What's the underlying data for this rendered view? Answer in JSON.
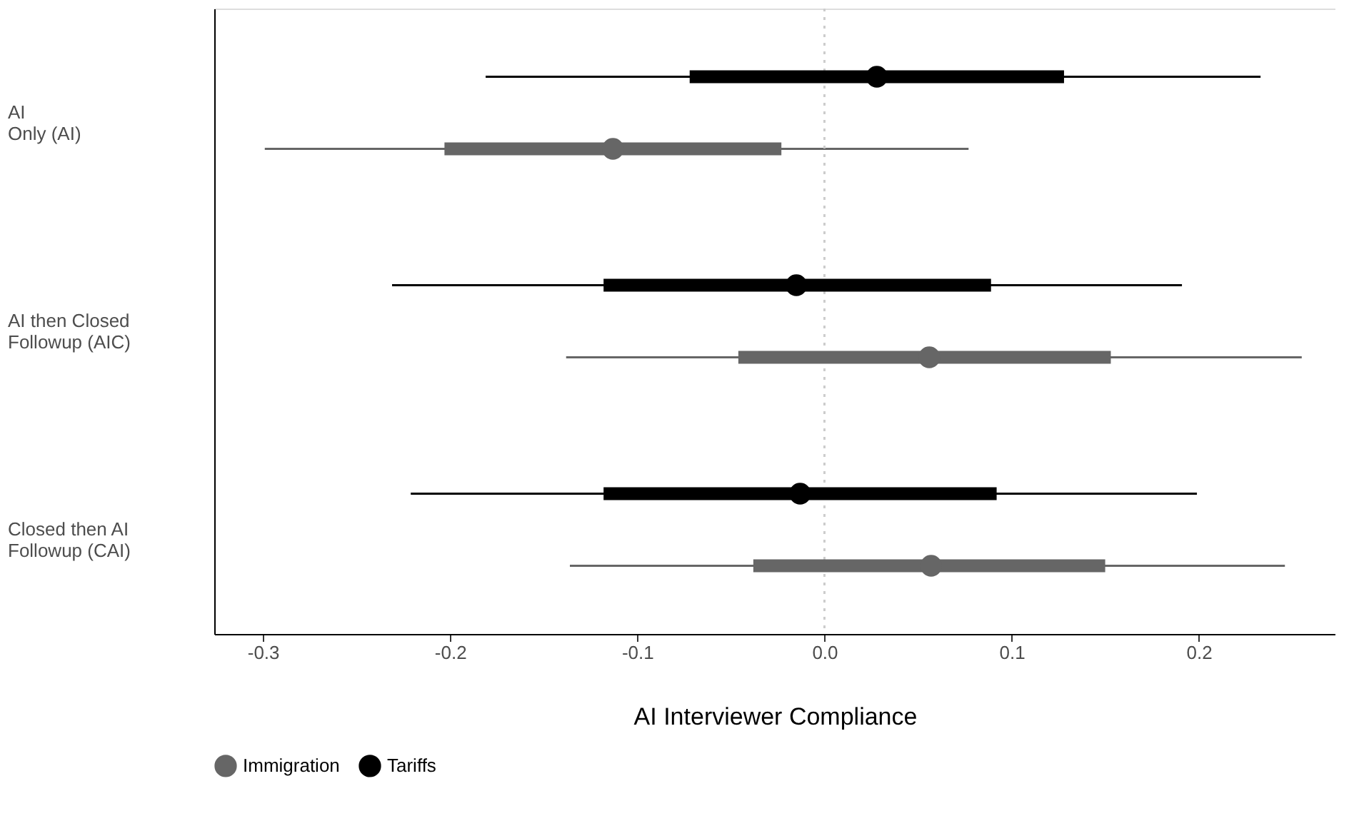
{
  "chart_data": {
    "type": "box",
    "orientation": "horizontal",
    "xlabel": "AI Interviewer Compliance",
    "categories": [
      "AI Only (AI)",
      "AI then Closed Followup (AIC)",
      "Closed then AI Followup (CAI)"
    ],
    "series": [
      {
        "name": "Immigration",
        "color": "#666666",
        "boxes": [
          {
            "low": -0.299,
            "q1": -0.203,
            "median": -0.113,
            "q3": -0.023,
            "high": 0.077
          },
          {
            "low": -0.138,
            "q1": -0.046,
            "median": 0.056,
            "q3": 0.153,
            "high": 0.255
          },
          {
            "low": -0.136,
            "q1": -0.038,
            "median": 0.057,
            "q3": 0.15,
            "high": 0.246
          }
        ]
      },
      {
        "name": "Tariffs",
        "color": "#000000",
        "boxes": [
          {
            "low": -0.181,
            "q1": -0.072,
            "median": 0.028,
            "q3": 0.128,
            "high": 0.233
          },
          {
            "low": -0.231,
            "q1": -0.118,
            "median": -0.015,
            "q3": 0.089,
            "high": 0.191
          },
          {
            "low": -0.221,
            "q1": -0.118,
            "median": -0.013,
            "q3": 0.092,
            "high": 0.199
          }
        ]
      }
    ],
    "xlim": [
      -0.326,
      0.273
    ],
    "xticks": [
      -0.3,
      -0.2,
      -0.1,
      {
        "value": 0,
        "label": "0.0"
      },
      0.1,
      0.2
    ],
    "ref_lines": [
      {
        "axis": "x",
        "value": 0,
        "color": "#cccccc",
        "line_style": "dotted"
      }
    ],
    "grid": false,
    "legend": "bottom",
    "marker": "circle"
  }
}
